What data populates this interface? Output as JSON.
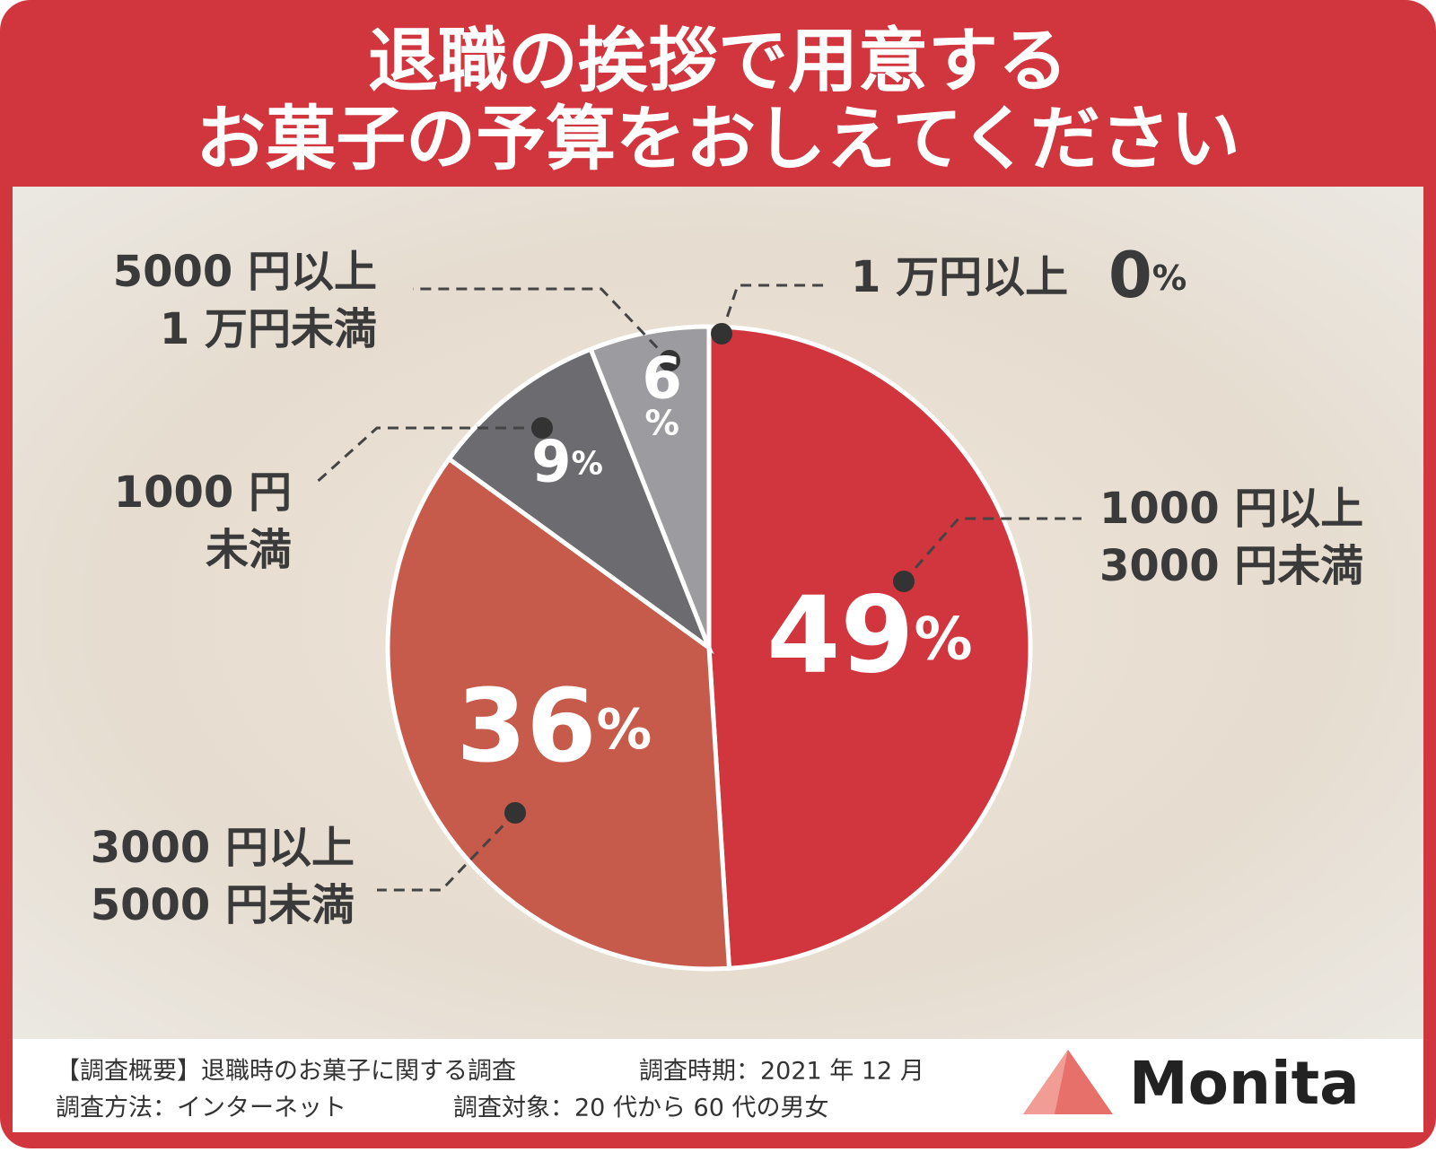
{
  "chart_data": {
    "type": "pie",
    "title": [
      "退職の挨拶で用意する",
      "お菓子の予算をおしえてください"
    ],
    "categories": [
      "1000 円以上\n3000 円未満",
      "3000 円以上\n5000 円未満",
      "1000 円\n未満",
      "5000 円以上\n1 万円未満",
      "1 万円以上"
    ],
    "values": [
      49,
      36,
      9,
      6,
      0
    ],
    "value_labels": [
      "49%",
      "36%",
      "9%",
      "6%",
      "0%"
    ],
    "colors": [
      "#d1353e",
      "#c65a4b",
      "#6c6b70",
      "#9c9ba0",
      "#b0b0b0"
    ]
  },
  "footer": {
    "lines": [
      [
        "【調査概要】退職時のお菓子に関する調査",
        "調査時期：2021 年 12 月"
      ],
      [
        "調査方法：インターネット",
        "調査対象：20 代から 60 代の男女"
      ]
    ]
  },
  "logo": "Monita"
}
